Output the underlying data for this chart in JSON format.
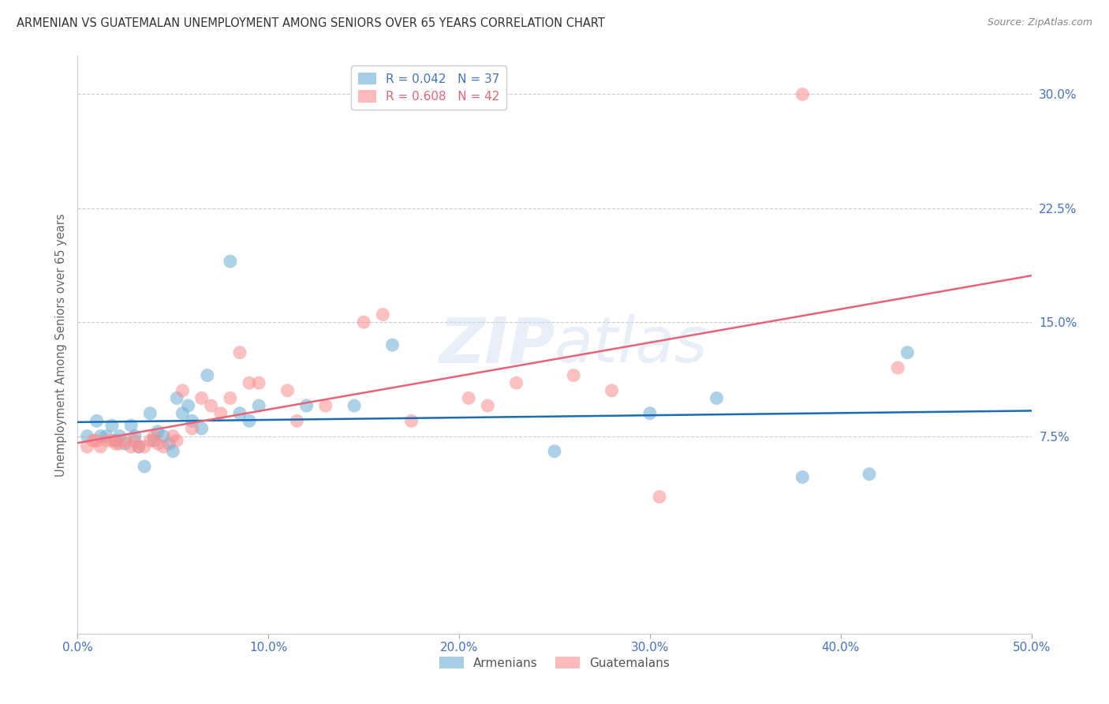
{
  "title": "ARMENIAN VS GUATEMALAN UNEMPLOYMENT AMONG SENIORS OVER 65 YEARS CORRELATION CHART",
  "source": "Source: ZipAtlas.com",
  "ylabel": "Unemployment Among Seniors over 65 years",
  "xlim": [
    0.0,
    0.5
  ],
  "ylim": [
    -0.055,
    0.325
  ],
  "armenian_R": 0.042,
  "armenian_N": 37,
  "guatemalan_R": 0.608,
  "guatemalan_N": 42,
  "armenian_color": "#6baed6",
  "guatemalan_color": "#fc8d8d",
  "armenian_line_color": "#1a6db5",
  "guatemalan_line_color": "#e8637a",
  "background_color": "#ffffff",
  "watermark_zip": "ZIP",
  "watermark_atlas": "atlas",
  "tick_color": "#4472c4",
  "yticks": [
    0.075,
    0.15,
    0.225,
    0.3
  ],
  "xticks": [
    0.0,
    0.1,
    0.2,
    0.3,
    0.4,
    0.5
  ],
  "armenian_x": [
    0.005,
    0.01,
    0.012,
    0.015,
    0.018,
    0.02,
    0.022,
    0.025,
    0.028,
    0.03,
    0.032,
    0.035,
    0.038,
    0.04,
    0.042,
    0.045,
    0.048,
    0.05,
    0.052,
    0.055,
    0.058,
    0.06,
    0.065,
    0.068,
    0.08,
    0.085,
    0.09,
    0.095,
    0.12,
    0.145,
    0.25,
    0.3,
    0.335,
    0.38,
    0.415,
    0.435,
    0.165
  ],
  "armenian_y": [
    0.075,
    0.085,
    0.075,
    0.075,
    0.082,
    0.072,
    0.075,
    0.07,
    0.082,
    0.075,
    0.068,
    0.055,
    0.09,
    0.072,
    0.078,
    0.075,
    0.07,
    0.065,
    0.1,
    0.09,
    0.095,
    0.085,
    0.08,
    0.115,
    0.19,
    0.09,
    0.085,
    0.095,
    0.095,
    0.095,
    0.065,
    0.09,
    0.1,
    0.048,
    0.05,
    0.13,
    0.135
  ],
  "guatemalan_x": [
    0.005,
    0.008,
    0.01,
    0.012,
    0.015,
    0.018,
    0.02,
    0.022,
    0.025,
    0.028,
    0.03,
    0.032,
    0.035,
    0.038,
    0.04,
    0.042,
    0.045,
    0.05,
    0.052,
    0.055,
    0.06,
    0.065,
    0.07,
    0.075,
    0.08,
    0.085,
    0.09,
    0.095,
    0.11,
    0.115,
    0.13,
    0.15,
    0.16,
    0.175,
    0.205,
    0.215,
    0.23,
    0.26,
    0.28,
    0.305,
    0.38,
    0.43
  ],
  "guatemalan_y": [
    0.068,
    0.072,
    0.072,
    0.068,
    0.072,
    0.072,
    0.07,
    0.07,
    0.072,
    0.068,
    0.072,
    0.068,
    0.068,
    0.072,
    0.075,
    0.07,
    0.068,
    0.075,
    0.072,
    0.105,
    0.08,
    0.1,
    0.095,
    0.09,
    0.1,
    0.13,
    0.11,
    0.11,
    0.105,
    0.085,
    0.095,
    0.15,
    0.155,
    0.085,
    0.1,
    0.095,
    0.11,
    0.115,
    0.105,
    0.035,
    0.3,
    0.12
  ],
  "legend_arm_label": "R = 0.042   N = 37",
  "legend_guat_label": "R = 0.608   N = 42",
  "bottom_legend_arm": "Armenians",
  "bottom_legend_guat": "Guatemalans"
}
